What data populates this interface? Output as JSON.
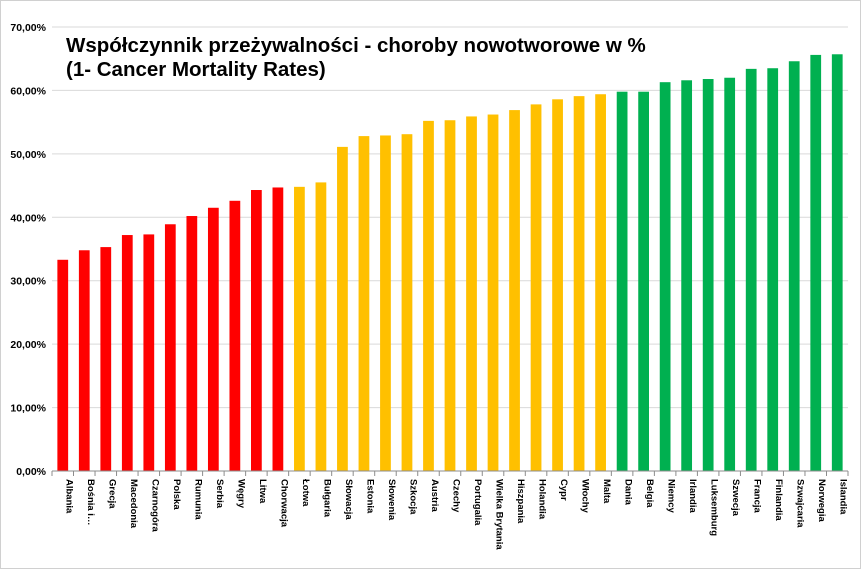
{
  "chart_data": {
    "type": "bar",
    "title_line1": "Współczynnik przeżywalności - choroby nowotworowe w %",
    "title_line2": "(1- Cancer Mortality Rates)",
    "xlabel": "",
    "ylabel": "",
    "ylim": [
      0,
      70
    ],
    "yticks": [
      "0,00%",
      "10,00%",
      "20,00%",
      "30,00%",
      "40,00%",
      "50,00%",
      "60,00%",
      "70,00%"
    ],
    "grid": true,
    "legend": "none",
    "colors": {
      "red": "#ff0000",
      "yellow": "#ffc000",
      "green": "#00b050"
    },
    "categories": [
      "Albania",
      "Bośnia i…",
      "Grecja",
      "Macedonia",
      "Czarnogóra",
      "Polska",
      "Rumunia",
      "Serbia",
      "Węgry",
      "Litwa",
      "Chorwacja",
      "Łotwa",
      "Bułgaria",
      "Słowacja",
      "Estonia",
      "Słowenia",
      "Szkocja",
      "Austria",
      "Czechy",
      "Portugalia",
      "Wielka Brytania",
      "Hiszpania",
      "Holandia",
      "Cypr",
      "Włochy",
      "Malta",
      "Dania",
      "Belgia",
      "Niemcy",
      "Irlandia",
      "Luksemburg",
      "Szwecja",
      "Francja",
      "Finlandia",
      "Szwajcaria",
      "Norwegia",
      "Islandia"
    ],
    "values": [
      33.3,
      34.8,
      35.3,
      37.2,
      37.3,
      38.9,
      40.2,
      41.5,
      42.6,
      44.3,
      44.7,
      44.8,
      45.5,
      51.1,
      52.8,
      52.9,
      53.1,
      55.2,
      55.3,
      55.9,
      56.2,
      56.9,
      57.8,
      58.6,
      59.1,
      59.4,
      59.8,
      59.8,
      61.3,
      61.6,
      61.8,
      62.0,
      63.4,
      63.5,
      64.6,
      65.6,
      65.7
    ],
    "bar_colors": [
      "red",
      "red",
      "red",
      "red",
      "red",
      "red",
      "red",
      "red",
      "red",
      "red",
      "red",
      "yellow",
      "yellow",
      "yellow",
      "yellow",
      "yellow",
      "yellow",
      "yellow",
      "yellow",
      "yellow",
      "yellow",
      "yellow",
      "yellow",
      "yellow",
      "yellow",
      "yellow",
      "green",
      "green",
      "green",
      "green",
      "green",
      "green",
      "green",
      "green",
      "green",
      "green",
      "green"
    ]
  }
}
